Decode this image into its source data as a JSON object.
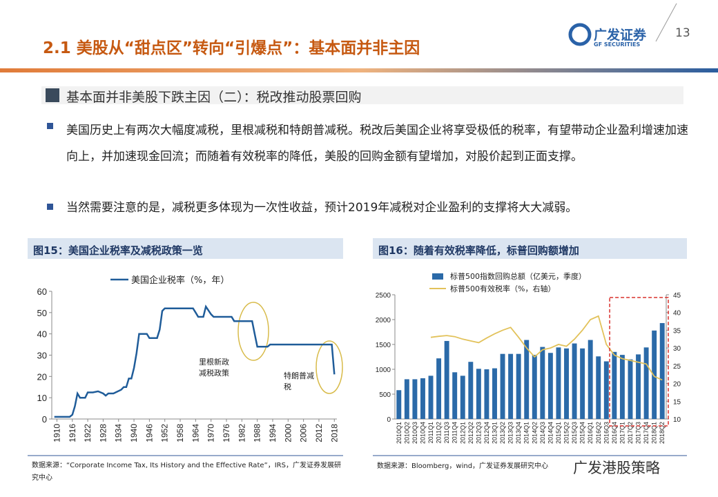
{
  "header": {
    "title": "2.1 美股从“甜点区”转向“引爆点”：基本面并非主因",
    "page": "13",
    "logo": "广发证券",
    "logo_en": "GF SECURITIES"
  },
  "section": "基本面并非美股下跌主因（二）：税改推动股票回购",
  "bullets": [
    "美国历史上有两次大幅度减税，里根减税和特朗普减税。税改后美国企业将享受极低的税率，有望带动企业盈利增速加速向上，并加速现金回流；而随着有效税率的降低，美股的回购金额有望增加，对股价起到正面支撑。",
    "当然需要注意的是，减税更多体现为一次性收益，预计2019年减税对企业盈利的支撑将大大减弱。"
  ],
  "watermark": "广发港股策略",
  "chart_data": [
    {
      "type": "line",
      "caption": "图15：美国企业税率及减税政策一览",
      "source": "数据来源：“Corporate Income Tax, Its History and the Effective Rate”，IRS，广发证券发展研究中心",
      "x": [
        1909,
        1915,
        1916,
        1917,
        1918,
        1919,
        1921,
        1922,
        1924,
        1926,
        1928,
        1929,
        1930,
        1932,
        1935,
        1936,
        1937,
        1938,
        1939,
        1940,
        1941,
        1942,
        1945,
        1946,
        1949,
        1950,
        1951,
        1952,
        1963,
        1964,
        1965,
        1967,
        1968,
        1970,
        1971,
        1978,
        1979,
        1986,
        1987,
        1988,
        1992,
        1993,
        2017,
        2018
      ],
      "series": [
        {
          "name": "美国企业税率（%，年）",
          "color": "#1f5c99",
          "values": [
            1,
            1,
            2,
            6,
            12,
            10,
            10,
            12.5,
            12.5,
            13,
            12,
            11,
            12,
            12,
            13.75,
            15,
            15,
            19,
            19,
            24,
            31,
            40,
            40,
            38,
            38,
            42,
            50.75,
            52,
            52,
            50,
            48,
            48,
            52.8,
            49.2,
            48,
            48,
            46,
            46,
            40,
            34,
            34,
            35,
            35,
            21
          ]
        }
      ],
      "xlim": [
        1908,
        2019
      ],
      "xticks": [
        1910,
        1916,
        1922,
        1928,
        1934,
        1940,
        1946,
        1952,
        1958,
        1964,
        1970,
        1976,
        1982,
        1988,
        1994,
        2000,
        2006,
        2012,
        2018
      ],
      "ylim": [
        0,
        60
      ],
      "yticks": [
        0,
        10,
        20,
        30,
        40,
        50,
        60
      ],
      "annotations": [
        "里根新政减税政策",
        "特朗普减税"
      ]
    },
    {
      "type": "bar",
      "caption": "图16：随着有效税率降低，标普回购额增加",
      "source": "数据来源：Bloomberg，wind，广发证券发展研究中心",
      "categories": [
        "2010Q1",
        "2010Q2",
        "2010Q3",
        "2010Q4",
        "2011Q1",
        "2011Q2",
        "2011Q3",
        "2011Q4",
        "2012Q1",
        "2012Q2",
        "2012Q3",
        "2012Q4",
        "2013Q1",
        "2013Q2",
        "2013Q3",
        "2013Q4",
        "2014Q1",
        "2014Q2",
        "2014Q3",
        "2014Q4",
        "2015Q1",
        "2015Q2",
        "2015Q3",
        "2015Q4",
        "2016Q1",
        "2016Q2",
        "2016Q3",
        "2016Q4",
        "2017Q1",
        "2017Q2",
        "2017Q3",
        "2017Q4",
        "2018Q1",
        "2018Q2"
      ],
      "series": [
        {
          "name": "标普500指数回购总额（亿美元，季度）",
          "type": "bar",
          "color": "#2b6aa8",
          "values": [
            580,
            800,
            800,
            820,
            870,
            1220,
            1570,
            940,
            870,
            1150,
            1010,
            1000,
            1020,
            1310,
            1310,
            1310,
            1590,
            1290,
            1450,
            1330,
            1440,
            1420,
            1520,
            1420,
            1590,
            1260,
            1160,
            1350,
            1290,
            1200,
            1300,
            1440,
            1780,
            1930
          ]
        },
        {
          "name": "标普500有效税率（%，右轴）",
          "type": "line",
          "axis": "y2",
          "color": "#e2c25a",
          "values": [
            null,
            null,
            null,
            null,
            33,
            33.3,
            33.5,
            33.2,
            32.5,
            32,
            31.5,
            32.8,
            34,
            35,
            35.8,
            33,
            30,
            27.5,
            29.5,
            30,
            31,
            30.5,
            32.5,
            35,
            38,
            39,
            31,
            28,
            27,
            26.5,
            26,
            25.5,
            22,
            21
          ]
        }
      ],
      "ylim": [
        0,
        2500
      ],
      "yticks": [
        0,
        500,
        1000,
        1500,
        2000,
        2500
      ],
      "y2lim": [
        10,
        45
      ],
      "y2ticks": [
        10,
        15,
        20,
        25,
        30,
        35,
        40,
        45
      ]
    }
  ]
}
